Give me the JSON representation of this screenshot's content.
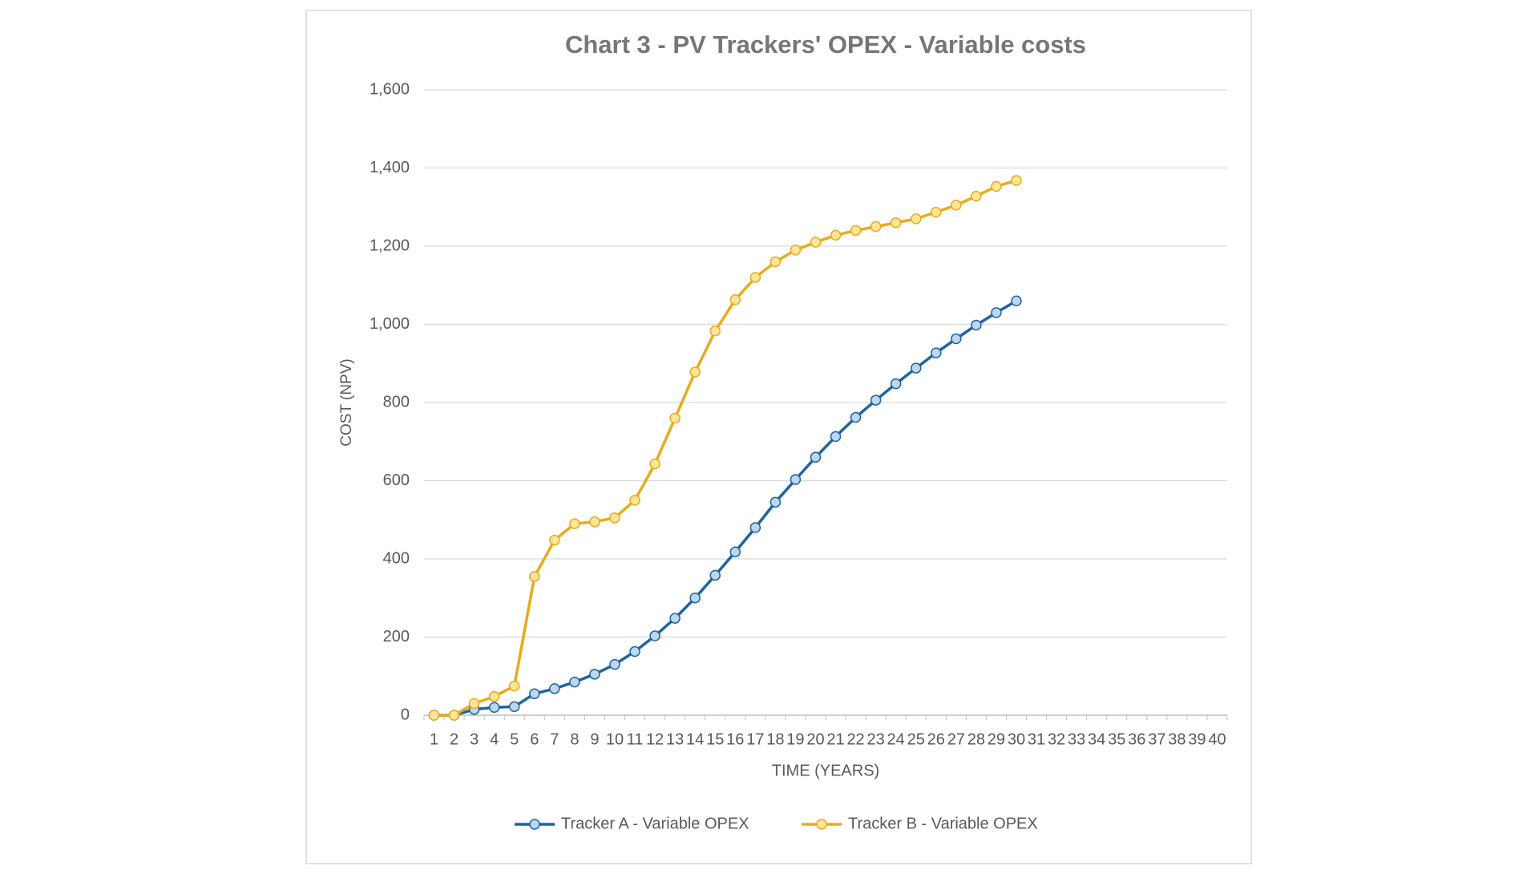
{
  "chart_data": {
    "type": "line",
    "title": "Chart 3 - PV Trackers' OPEX - Variable costs",
    "x_label": "TIME (YEARS)",
    "y_label": "COST (NPV)",
    "categories": [
      1,
      2,
      3,
      4,
      5,
      6,
      7,
      8,
      9,
      10,
      11,
      12,
      13,
      14,
      15,
      16,
      17,
      18,
      19,
      20,
      21,
      22,
      23,
      24,
      25,
      26,
      27,
      28,
      29,
      30,
      31,
      32,
      33,
      34,
      35,
      36,
      37,
      38,
      39,
      40
    ],
    "series": [
      {
        "name": "Tracker A - Variable OPEX",
        "color": "#1f64a0",
        "marker_fill": "#bdd7ee",
        "values": [
          0,
          0,
          15,
          20,
          22,
          55,
          68,
          85,
          105,
          130,
          163,
          203,
          248,
          300,
          358,
          418,
          480,
          545,
          603,
          660,
          713,
          762,
          806,
          848,
          888,
          927,
          963,
          998,
          1030,
          1060,
          null,
          null,
          null,
          null,
          null,
          null,
          null,
          null,
          null,
          null
        ]
      },
      {
        "name": "Tracker B - Variable OPEX",
        "color": "#e8ab1a",
        "marker_fill": "#fde59a",
        "values": [
          0,
          0,
          30,
          48,
          75,
          355,
          448,
          490,
          495,
          505,
          550,
          643,
          760,
          878,
          983,
          1063,
          1120,
          1160,
          1190,
          1210,
          1228,
          1240,
          1250,
          1260,
          1270,
          1287,
          1305,
          1328,
          1353,
          1368,
          null,
          null,
          null,
          null,
          null,
          null,
          null,
          null,
          null,
          null
        ]
      }
    ],
    "ylim": [
      0,
      1600
    ],
    "yticks": [
      0,
      200,
      400,
      600,
      800,
      {
        "value": 1000,
        "label": "1,000"
      },
      {
        "value": 1200,
        "label": "1,200"
      },
      {
        "value": 1400,
        "label": "1,400"
      },
      {
        "value": 1600,
        "label": "1,600"
      }
    ],
    "grid": true,
    "legend": "bottom"
  }
}
